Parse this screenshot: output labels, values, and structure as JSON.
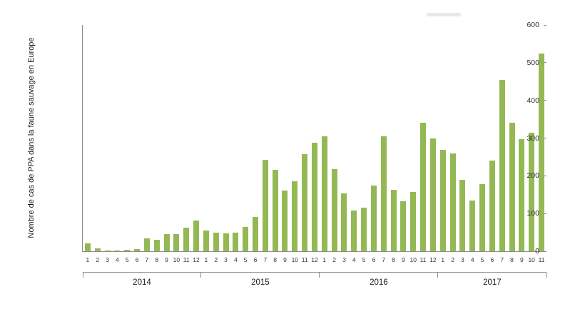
{
  "chart_data": {
    "type": "bar",
    "title": "",
    "xlabel": "",
    "ylabel": "Nombre de cas de PPA dans la faune sauvage en Europe",
    "ylim": [
      0,
      600
    ],
    "ytick_step": 100,
    "grid": false,
    "legend": "none",
    "bar_color": "#94b954",
    "groups": [
      {
        "year": "2014",
        "months": [
          "1",
          "2",
          "3",
          "4",
          "5",
          "6",
          "7",
          "8",
          "9",
          "10",
          "11",
          "12"
        ],
        "values": [
          20,
          8,
          2,
          2,
          3,
          5,
          35,
          30,
          45,
          45,
          62,
          82
        ]
      },
      {
        "year": "2015",
        "months": [
          "1",
          "2",
          "3",
          "4",
          "5",
          "6",
          "7",
          "8",
          "9",
          "10",
          "11",
          "12"
        ],
        "values": [
          55,
          50,
          48,
          50,
          65,
          90,
          243,
          215,
          160,
          185,
          258,
          288
        ]
      },
      {
        "year": "2016",
        "months": [
          "1",
          "2",
          "3",
          "4",
          "5",
          "6",
          "7",
          "8",
          "9",
          "10",
          "11",
          "12"
        ],
        "values": [
          305,
          218,
          153,
          108,
          115,
          175,
          305,
          163,
          133,
          158,
          340,
          300
        ]
      },
      {
        "year": "2017",
        "months": [
          "1",
          "2",
          "3",
          "4",
          "5",
          "6",
          "7",
          "8",
          "9",
          "10",
          "11"
        ],
        "values": [
          268,
          260,
          190,
          135,
          178,
          240,
          455,
          340,
          298,
          315,
          525
        ]
      }
    ]
  }
}
